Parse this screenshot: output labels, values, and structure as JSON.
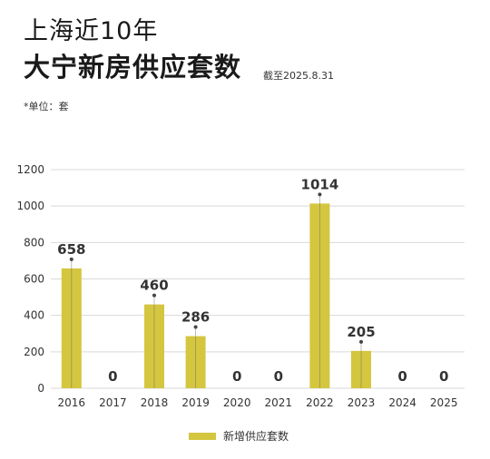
{
  "header": {
    "title_line1": "上海近10年",
    "title_line2": "大宁新房供应套数",
    "as_of": "截至2025.8.31",
    "unit_note": "*单位：套"
  },
  "colors": {
    "bar": "#d4c63f",
    "grid": "#d9d9d9",
    "axis_text": "#333333",
    "label_text": "#333333"
  },
  "chart_data": {
    "type": "bar",
    "categories": [
      "2016",
      "2017",
      "2018",
      "2019",
      "2020",
      "2021",
      "2022",
      "2023",
      "2024",
      "2025"
    ],
    "series": [
      {
        "name": "新增供应套数",
        "values": [
          658,
          0,
          460,
          286,
          0,
          0,
          1014,
          205,
          0,
          0
        ]
      }
    ],
    "data_labels": [
      "658",
      "0",
      "460",
      "286",
      "0",
      "0",
      "1014",
      "205",
      "0",
      "0"
    ],
    "yticks": [
      "0",
      "200",
      "400",
      "600",
      "800",
      "1000",
      "1200"
    ],
    "ylim": [
      0,
      1200
    ],
    "grid": true,
    "legend_position": "bottom-center"
  }
}
